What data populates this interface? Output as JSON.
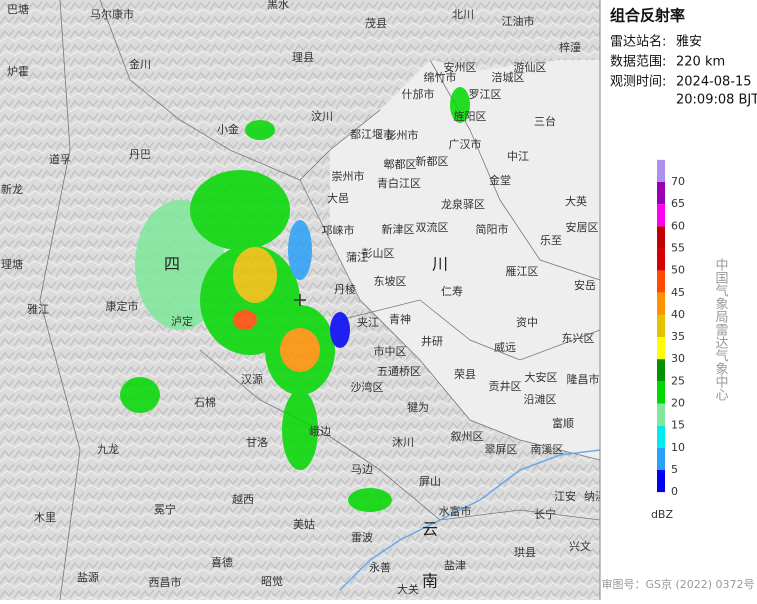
{
  "panel": {
    "title": "组合反射率",
    "station_label": "雷达站名:",
    "station": "雅安",
    "range_label": "数据范围:",
    "range": "220 km",
    "time_label": "观测时间:",
    "date": "2024-08-15",
    "time": "20:09:08 BJT"
  },
  "colorbar": {
    "ticks": [
      70,
      65,
      60,
      55,
      50,
      45,
      40,
      35,
      30,
      25,
      20,
      15,
      10,
      5,
      0
    ],
    "colors": [
      "#ad90f0",
      "#9600b4",
      "#ff00f0",
      "#c00000",
      "#d60000",
      "#ff4a00",
      "#ff9000",
      "#e7c000",
      "#ffff00",
      "#009000",
      "#00d800",
      "#7fe89a",
      "#00ecec",
      "#2aa0f6",
      "#0000f6"
    ],
    "unit": "dBZ"
  },
  "agency": "中国气象局雷达气象中心",
  "footer": "审图号：GS京 (2022) 0372号",
  "map": {
    "places": [
      "巴塘",
      "马尔康市",
      "黑水",
      "茂县",
      "北川",
      "江油市",
      "梓潼",
      "炉霍",
      "金川",
      "理县",
      "汶川",
      "小金",
      "丹巴",
      "道孚",
      "新龙",
      "理塘",
      "雅江",
      "康定市",
      "泸定",
      "石棉",
      "汉源",
      "甘洛",
      "九龙",
      "越西",
      "冕宁",
      "喜德",
      "木里",
      "盐源",
      "西昌市",
      "昭觉",
      "美姑",
      "雷波",
      "马边",
      "峨边",
      "沐川",
      "屏山",
      "叙州区",
      "翠屏区",
      "南溪区",
      "水富市",
      "长宁",
      "珙县",
      "兴文",
      "永善",
      "大关",
      "盐津",
      "犍为",
      "井研",
      "五通桥区",
      "市中区",
      "沙湾区",
      "夹江",
      "青神",
      "丹棱",
      "东坡区",
      "彭山区",
      "蒲江",
      "邛崃市",
      "大邑",
      "崇州市",
      "新津区",
      "双流区",
      "郫都区",
      "新都区",
      "青白江区",
      "彭州市",
      "什邡市",
      "绵竹市",
      "安州区",
      "罗江区",
      "涪城区",
      "游仙区",
      "旌阳区",
      "中江",
      "三台",
      "广汉市",
      "金堂",
      "龙泉驿区",
      "简阳市",
      "乐至",
      "雁江区",
      "安岳",
      "仁寿",
      "资中",
      "东兴区",
      "威远",
      "荣县",
      "贡井区",
      "大安区",
      "隆昌市",
      "沿滩区",
      "富顺",
      "江安",
      "纳溪",
      "大英",
      "安居区",
      "都江堰市",
      "四",
      "川",
      "云",
      "南"
    ]
  }
}
